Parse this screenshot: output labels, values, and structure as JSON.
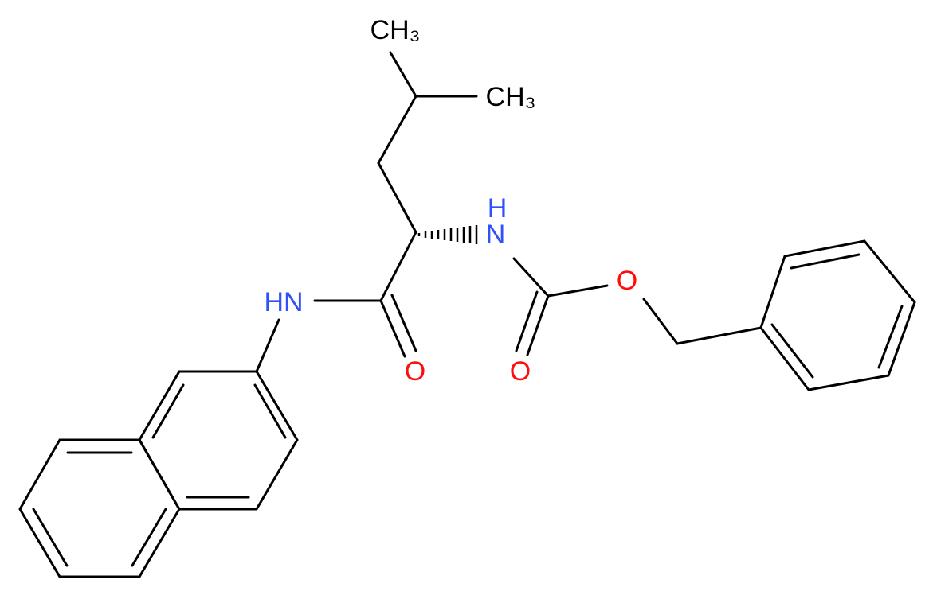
{
  "nodes": [
    {
      "label": "CH₃"
    },
    {
      "label": "CH₃"
    },
    {
      "label": "N"
    },
    {
      "label": "H"
    },
    {
      "label": "HN"
    },
    {
      "label": "O"
    },
    {
      "label": "O"
    },
    {
      "label": "O"
    }
  ]
}
